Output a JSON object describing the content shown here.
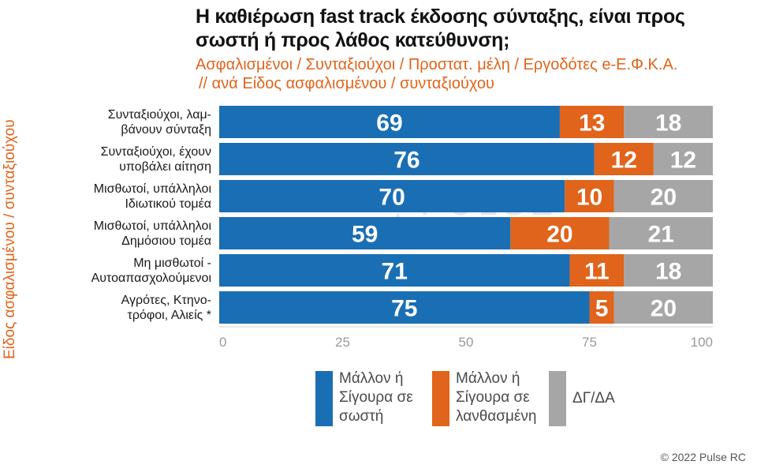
{
  "title": "Η καθιέρωση fast track έκδοσης σύνταξης, είναι προς σωστή ή προς λάθος κατεύθυνση;",
  "subtitle_line1": "Ασφαλισμένοι / Συνταξιούχοι / Προστατ. μέλη / Εργοδότες e-Ε.Φ.Κ.Α.",
  "subtitle_line2": "// ανά Είδος ασφαλισμένου / συνταξιούχου",
  "side_label": "Είδος ασφαλισμένου / συνταξιούχου",
  "watermark": "PULSE RESEARCH | CONSULTING",
  "copyright": "© 2022 Pulse RC",
  "colors": {
    "correct": "#1a6fb4",
    "wrong": "#e0641b",
    "dk": "#a6a6a6"
  },
  "chart_data": {
    "type": "bar",
    "orientation": "horizontal",
    "stacked": true,
    "categories": [
      [
        "Συνταξιούχοι, λαμ-",
        "βάνουν σύνταξη"
      ],
      [
        "Συνταξιούχοι, έχουν",
        "υποβάλει αίτηση"
      ],
      [
        "Μισθωτοί, υπάλληλοι",
        "Ιδιωτικού τομέα"
      ],
      [
        "Μισθωτοί, υπάλληλοι",
        "Δημόσιου τομέα"
      ],
      [
        "Μη μισθωτοί -",
        "Αυτοαπασχολούμενοι"
      ],
      [
        "Αγρότες, Κτηνο-",
        "τρόφοι, Αλιείς *"
      ]
    ],
    "series": [
      {
        "name": "Μάλλον ή Σίγουρα σε σωστή",
        "legend_lines": [
          "Μάλλον ή",
          "Σίγουρα σε",
          "σωστή"
        ],
        "color": "#1a6fb4",
        "values": [
          69,
          76,
          70,
          59,
          71,
          75
        ]
      },
      {
        "name": "Μάλλον ή Σίγουρα σε λανθασμένη",
        "legend_lines": [
          "Μάλλον ή",
          "Σίγουρα σε",
          "λανθασμένη"
        ],
        "color": "#e0641b",
        "values": [
          13,
          12,
          10,
          20,
          11,
          5
        ]
      },
      {
        "name": "ΔΓ/ΔΑ",
        "legend_lines": [
          "ΔΓ/ΔΑ"
        ],
        "color": "#a6a6a6",
        "values": [
          18,
          12,
          20,
          21,
          18,
          20
        ]
      }
    ],
    "xlim": [
      0,
      100
    ],
    "xticks": [
      0,
      25,
      50,
      75,
      100
    ],
    "grid": false,
    "legend_position": "bottom"
  }
}
